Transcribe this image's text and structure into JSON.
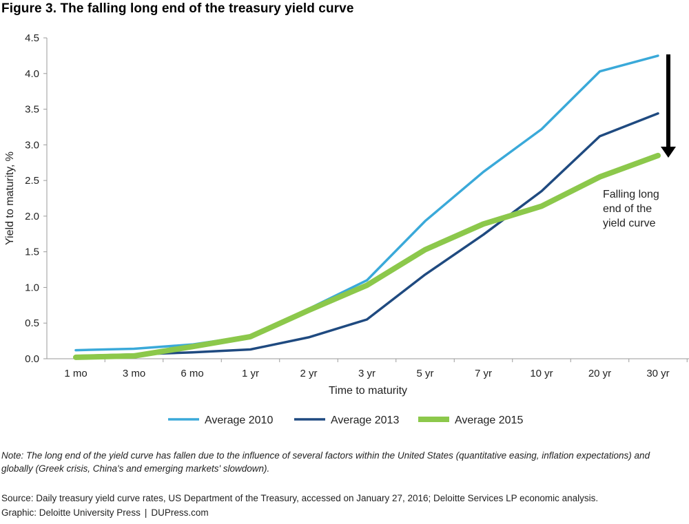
{
  "figure": {
    "title": "Figure 3. The falling long end of the treasury yield curve",
    "note": "Note: The long end of the yield curve has fallen due to the influence of several factors within the United States (quantitative easing, inflation expectations) and globally (Greek crisis, China's and emerging markets' slowdown).",
    "source": "Source: Daily treasury yield curve rates, US Department of the Treasury, accessed on January 27, 2016; Deloitte Services LP economic analysis.",
    "credit_left": "Graphic: Deloitte University Press",
    "credit_sep": "|",
    "credit_right": "DUPress.com"
  },
  "chart_data": {
    "type": "line",
    "title": "Figure 3. The falling long end of the treasury yield curve",
    "xlabel": "Time to maturity",
    "ylabel": "Yield to maturity, %",
    "categories": [
      "1 mo",
      "3 mo",
      "6 mo",
      "1 yr",
      "2 yr",
      "3 yr",
      "5 yr",
      "7 yr",
      "10 yr",
      "20 yr",
      "30 yr"
    ],
    "ylim": [
      0,
      4.5
    ],
    "yticks": [
      "0.0",
      "0.5",
      "1.0",
      "1.5",
      "2.0",
      "2.5",
      "3.0",
      "3.5",
      "4.0",
      "4.5"
    ],
    "grid": false,
    "legend_position": "bottom",
    "series": [
      {
        "name": "Average 2010",
        "color": "#3aa9d9",
        "values": [
          0.12,
          0.14,
          0.2,
          0.32,
          0.7,
          1.1,
          1.93,
          2.62,
          3.22,
          4.03,
          4.25
        ]
      },
      {
        "name": "Average 2013",
        "color": "#1f4a80",
        "values": [
          0.04,
          0.06,
          0.09,
          0.13,
          0.3,
          0.55,
          1.18,
          1.74,
          2.35,
          3.12,
          3.44
        ]
      },
      {
        "name": "Average 2015",
        "color": "#8cc84b",
        "values": [
          0.02,
          0.04,
          0.17,
          0.31,
          0.68,
          1.03,
          1.53,
          1.89,
          2.14,
          2.55,
          2.85
        ]
      }
    ],
    "annotation": {
      "lines": [
        "Falling long",
        "end of the",
        "yield curve"
      ],
      "arrow": "down"
    }
  }
}
